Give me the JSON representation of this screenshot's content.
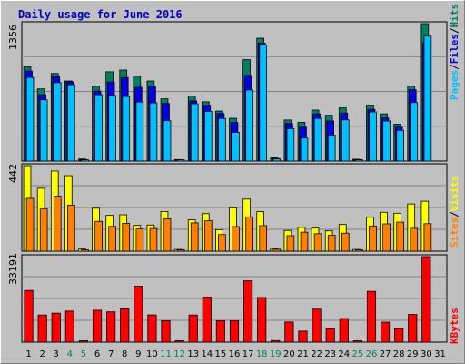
{
  "chart_data": [
    {
      "type": "bar",
      "title": "Daily usage for June 2016",
      "panel": "top",
      "ymax_label": "1356",
      "ylim": [
        0,
        1356
      ],
      "categories": [
        "1",
        "2",
        "3",
        "4",
        "5",
        "6",
        "7",
        "8",
        "9",
        "10",
        "11",
        "12",
        "13",
        "14",
        "15",
        "16",
        "17",
        "18",
        "19",
        "20",
        "21",
        "22",
        "23",
        "24",
        "25",
        "26",
        "27",
        "28",
        "29",
        "30",
        "31"
      ],
      "legend": [
        {
          "text": "Pages",
          "color": "#00c0ff"
        },
        {
          "text": "/",
          "color": "#000000"
        },
        {
          "text": "Files",
          "color": "#0000e0"
        },
        {
          "text": "/",
          "color": "#000000"
        },
        {
          "text": "Hits",
          "color": "#008060"
        }
      ],
      "series": [
        {
          "name": "Hits",
          "color": "#008060",
          "values": [
            932,
            712,
            864,
            790,
            21,
            739,
            881,
            898,
            839,
            790,
            614,
            15,
            643,
            585,
            493,
            422,
            1000,
            1212,
            33,
            405,
            382,
            503,
            452,
            525,
            18,
            552,
            466,
            364,
            739,
            1356,
            0
          ]
        },
        {
          "name": "Files",
          "color": "#0000e0",
          "values": [
            888,
            655,
            834,
            782,
            12,
            691,
            780,
            824,
            728,
            739,
            568,
            8,
            593,
            550,
            469,
            381,
            845,
            1164,
            26,
            370,
            334,
            466,
            395,
            474,
            11,
            510,
            425,
            335,
            704,
            1168,
            0
          ]
        },
        {
          "name": "Pages",
          "color": "#00c0ff",
          "values": [
            825,
            604,
            774,
            754,
            6,
            655,
            647,
            637,
            582,
            574,
            398,
            5,
            566,
            490,
            420,
            283,
            701,
            1146,
            21,
            319,
            227,
            421,
            255,
            406,
            5,
            485,
            395,
            303,
            577,
            1233,
            0
          ]
        }
      ]
    },
    {
      "type": "bar",
      "panel": "middle",
      "ymax_label": "442",
      "ylim": [
        0,
        442
      ],
      "categories": [
        "1",
        "2",
        "3",
        "4",
        "5",
        "6",
        "7",
        "8",
        "9",
        "10",
        "11",
        "12",
        "13",
        "14",
        "15",
        "16",
        "17",
        "18",
        "19",
        "20",
        "21",
        "22",
        "23",
        "24",
        "25",
        "26",
        "27",
        "28",
        "29",
        "30",
        "31"
      ],
      "legend": [
        {
          "text": "Sites",
          "color": "#ff8000"
        },
        {
          "text": "/",
          "color": "#000000"
        },
        {
          "text": "Visits",
          "color": "#ffff00"
        }
      ],
      "series": [
        {
          "name": "Visits",
          "color": "#ffff00",
          "values": [
            442,
            325,
            414,
            390,
            11,
            222,
            185,
            188,
            133,
            135,
            205,
            9,
            162,
            194,
            111,
            224,
            269,
            204,
            14,
            107,
            123,
            119,
            105,
            138,
            9,
            175,
            201,
            196,
            244,
            258,
            0
          ]
        },
        {
          "name": "Sites",
          "color": "#ff8000",
          "values": [
            273,
            218,
            284,
            238,
            7,
            154,
            128,
            144,
            115,
            117,
            167,
            6,
            146,
            157,
            86,
            127,
            177,
            132,
            10,
            80,
            98,
            90,
            82,
            93,
            7,
            130,
            141,
            150,
            118,
            142,
            0
          ]
        }
      ]
    },
    {
      "type": "bar",
      "panel": "bottom",
      "ymax_label": "33191",
      "ylim": [
        0,
        33191
      ],
      "categories": [
        "1",
        "2",
        "3",
        "4",
        "5",
        "6",
        "7",
        "8",
        "9",
        "10",
        "11",
        "12",
        "13",
        "14",
        "15",
        "16",
        "17",
        "18",
        "19",
        "20",
        "21",
        "22",
        "23",
        "24",
        "25",
        "26",
        "27",
        "28",
        "29",
        "30",
        "31"
      ],
      "legend": [
        {
          "text": "KBytes",
          "color": "#ff0000"
        }
      ],
      "series": [
        {
          "name": "KBytes",
          "color": "#ff0000",
          "values": [
            20043,
            10533,
            11260,
            12063,
            183,
            12381,
            11757,
            12897,
            21720,
            10576,
            8276,
            161,
            10530,
            17470,
            8297,
            8302,
            23791,
            17339,
            616,
            7806,
            4283,
            12812,
            5452,
            9164,
            208,
            19720,
            7746,
            5487,
            10750,
            33191,
            0
          ]
        }
      ]
    }
  ],
  "x_ticks": [
    {
      "label": "1",
      "color": "#000000"
    },
    {
      "label": "2",
      "color": "#000000"
    },
    {
      "label": "3",
      "color": "#000000"
    },
    {
      "label": "4",
      "color": "#00804f"
    },
    {
      "label": "5",
      "color": "#00804f"
    },
    {
      "label": "6",
      "color": "#000000"
    },
    {
      "label": "7",
      "color": "#000000"
    },
    {
      "label": "8",
      "color": "#000000"
    },
    {
      "label": "9",
      "color": "#000000"
    },
    {
      "label": "10",
      "color": "#000000"
    },
    {
      "label": "11",
      "color": "#00804f"
    },
    {
      "label": "12",
      "color": "#00804f"
    },
    {
      "label": "13",
      "color": "#000000"
    },
    {
      "label": "14",
      "color": "#000000"
    },
    {
      "label": "15",
      "color": "#000000"
    },
    {
      "label": "16",
      "color": "#000000"
    },
    {
      "label": "17",
      "color": "#000000"
    },
    {
      "label": "18",
      "color": "#00804f"
    },
    {
      "label": "19",
      "color": "#00804f"
    },
    {
      "label": "20",
      "color": "#000000"
    },
    {
      "label": "21",
      "color": "#000000"
    },
    {
      "label": "22",
      "color": "#000000"
    },
    {
      "label": "23",
      "color": "#000000"
    },
    {
      "label": "24",
      "color": "#000000"
    },
    {
      "label": "25",
      "color": "#00804f"
    },
    {
      "label": "26",
      "color": "#00804f"
    },
    {
      "label": "27",
      "color": "#000000"
    },
    {
      "label": "28",
      "color": "#000000"
    },
    {
      "label": "29",
      "color": "#000000"
    },
    {
      "label": "30",
      "color": "#000000"
    },
    {
      "label": "31",
      "color": "#000000"
    }
  ],
  "colors": {
    "background": "#c0c0c0",
    "title": "#0000c0",
    "grid": "#808080",
    "border_dark": "#000000"
  }
}
